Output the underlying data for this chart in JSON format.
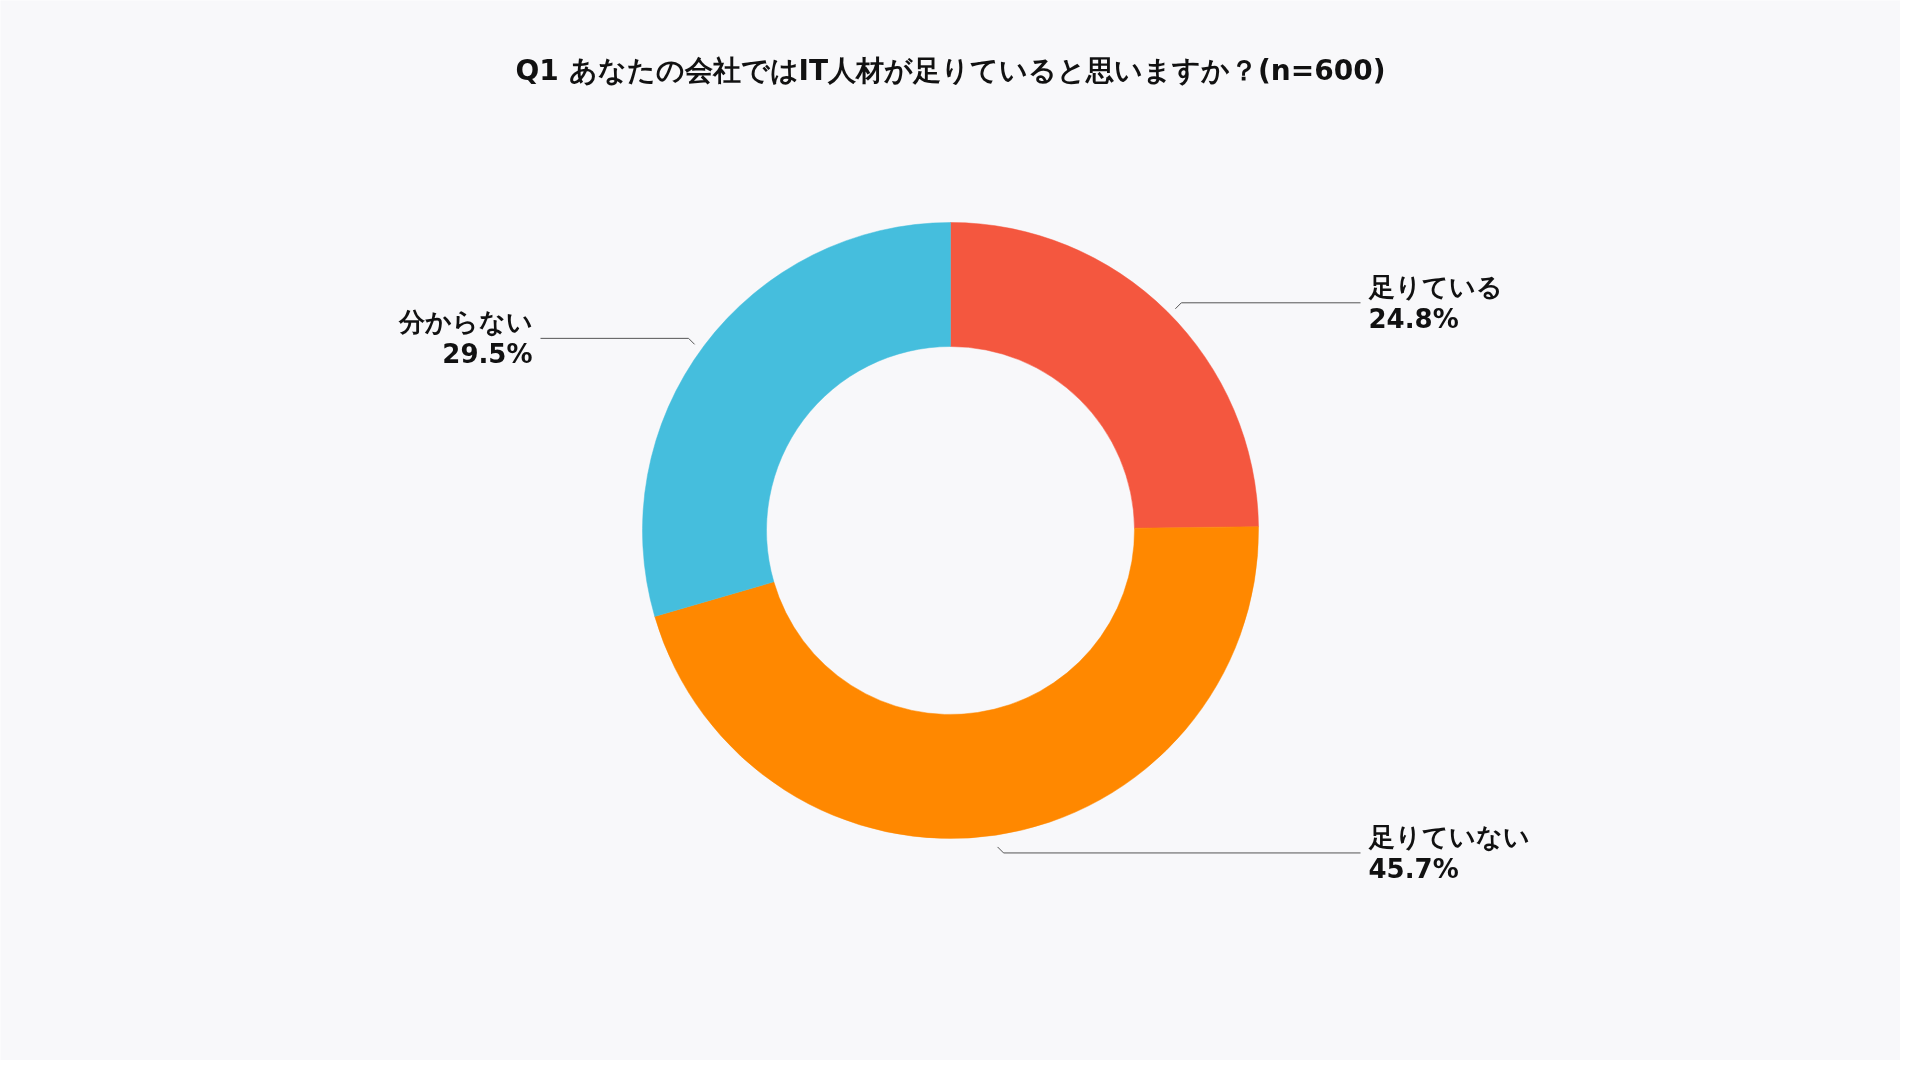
{
  "chart_data": {
    "type": "donut",
    "title": "Q1 あなたの会社ではIT人材が足りていると思いますか？(n=600)",
    "categories": [
      "足りている",
      "足りていない",
      "分からない"
    ],
    "values": [
      24.8,
      45.7,
      29.5
    ],
    "value_labels": [
      "24.8%",
      "45.7%",
      "29.5%"
    ],
    "colors": [
      "#f4573f",
      "#ff8800",
      "#45bedd"
    ]
  }
}
